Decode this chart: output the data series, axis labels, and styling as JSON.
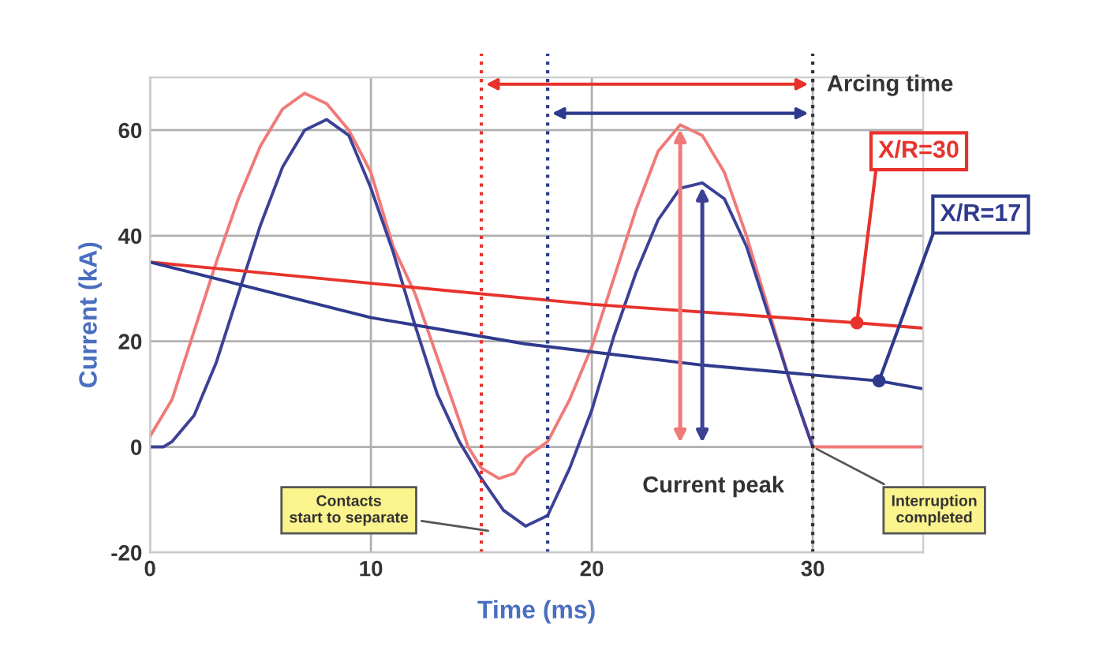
{
  "chart_data": {
    "type": "line",
    "xlabel": "Time (ms)",
    "ylabel": "Current (kA)",
    "xlim": [
      0,
      35
    ],
    "ylim": [
      -20,
      70
    ],
    "xticks": [
      0,
      10,
      20,
      30
    ],
    "yticks": [
      -20,
      0,
      20,
      40,
      60
    ],
    "grid": true,
    "legend": "right",
    "series": [
      {
        "color": "#f07a78",
        "x": [
          0,
          1,
          2,
          3,
          4,
          5,
          6,
          7,
          8,
          9,
          10,
          11,
          12,
          13,
          14,
          14.4,
          15,
          15.8,
          16.5,
          17,
          18,
          19,
          20,
          21,
          22,
          23,
          24,
          25,
          26,
          27,
          28,
          29,
          30,
          35
        ],
        "values": [
          2,
          9,
          22,
          35,
          47,
          57,
          64,
          67,
          65,
          60,
          52,
          38,
          29,
          17,
          5,
          0,
          -4,
          -6,
          -5,
          -2,
          1,
          9,
          19,
          32,
          45,
          56,
          61,
          59,
          52,
          40,
          26,
          12,
          0,
          0
        ]
      },
      {
        "color": "#3d4196",
        "x": [
          0,
          0.6,
          1,
          2,
          3,
          4,
          5,
          6,
          7,
          8,
          9,
          10,
          11,
          12,
          13,
          14,
          15,
          16,
          17,
          18,
          19,
          20,
          21,
          22,
          23,
          24,
          25,
          26,
          27,
          28,
          29,
          30
        ],
        "values": [
          0,
          0,
          1,
          6,
          16,
          29,
          42,
          53,
          60,
          62,
          59,
          49,
          37,
          23,
          10,
          1,
          -6,
          -12,
          -15,
          -13,
          -4,
          7,
          21,
          33,
          43,
          49,
          50,
          47,
          38,
          25,
          12,
          0
        ]
      },
      {
        "name": "X/R=30",
        "color": "#e8322c",
        "x": [
          0,
          10,
          20,
          32,
          35
        ],
        "values": [
          35,
          31,
          27,
          23.5,
          22.5
        ]
      },
      {
        "name": "X/R=17",
        "color": "#2e3a8c",
        "x": [
          0,
          10,
          17,
          25,
          33,
          35
        ],
        "values": [
          35,
          24.5,
          19.5,
          15.5,
          12.5,
          11
        ]
      }
    ],
    "ref_lines": [
      {
        "axis": "x",
        "value": 15,
        "color": "#e8322c",
        "line_style": "dotted"
      },
      {
        "axis": "x",
        "value": 18,
        "color": "#2e3a8c",
        "line_style": "dotted"
      },
      {
        "axis": "x",
        "value": 30,
        "color": "#333333",
        "line_style": "dotted"
      }
    ],
    "annotations": [
      "Arcing time",
      "Current peak",
      "Contacts\nstart to separate",
      {
        "text": "Interruption\ncompleted",
        "x": 30,
        "y": 0
      }
    ]
  }
}
